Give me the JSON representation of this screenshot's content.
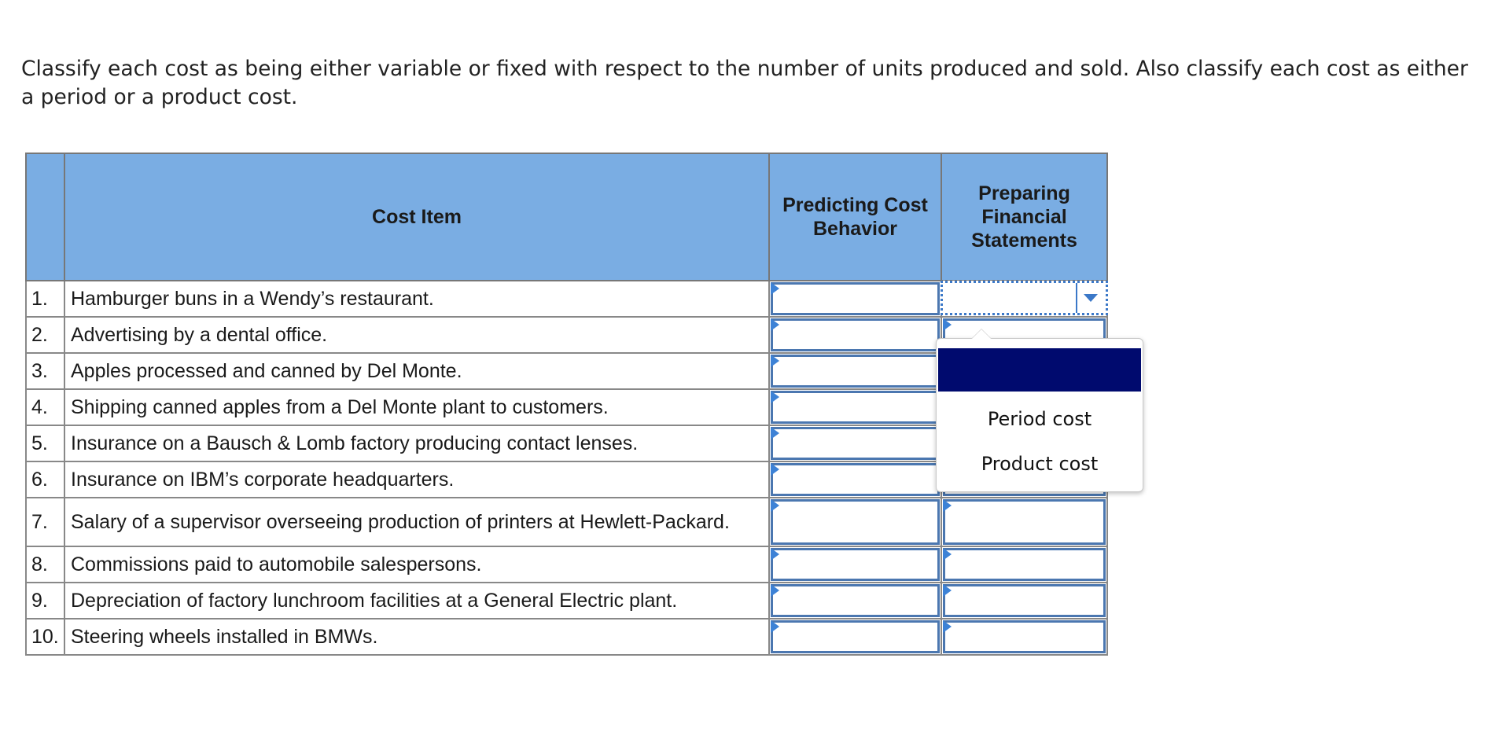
{
  "instructions": "Classify each cost as being either variable or fixed with respect to the number of units produced and sold. Also classify each cost as either a period or a product cost.",
  "table": {
    "headers": {
      "number": "",
      "cost_item": "Cost Item",
      "predicting": "Predicting Cost Behavior",
      "preparing": "Preparing Financial Statements"
    },
    "rows": [
      {
        "num": "1.",
        "item": "Hamburger buns in a Wendy’s restaurant.",
        "behavior": "",
        "statement": ""
      },
      {
        "num": "2.",
        "item": "Advertising by a dental office.",
        "behavior": "",
        "statement": ""
      },
      {
        "num": "3.",
        "item": "Apples processed and canned by Del Monte.",
        "behavior": "",
        "statement": ""
      },
      {
        "num": "4.",
        "item": "Shipping canned apples from a Del Monte plant to customers.",
        "behavior": "",
        "statement": ""
      },
      {
        "num": "5.",
        "item": "Insurance on a Bausch & Lomb factory producing contact lenses.",
        "behavior": "",
        "statement": ""
      },
      {
        "num": "6.",
        "item": "Insurance on IBM’s corporate headquarters.",
        "behavior": "",
        "statement": ""
      },
      {
        "num": "7.",
        "item": "Salary of a supervisor overseeing production of printers at Hewlett-Packard.",
        "behavior": "",
        "statement": ""
      },
      {
        "num": "8.",
        "item": "Commissions paid to automobile salespersons.",
        "behavior": "",
        "statement": ""
      },
      {
        "num": "9.",
        "item": "Depreciation of factory lunchroom facilities at a General Electric plant.",
        "behavior": "",
        "statement": ""
      },
      {
        "num": "10.",
        "item": "Steering wheels installed in BMWs.",
        "behavior": "",
        "statement": ""
      }
    ]
  },
  "dropdown": {
    "options": [
      "",
      "Period cost",
      "Product cost"
    ],
    "highlighted_index": 0
  },
  "colors": {
    "header_bg": "#7aade3",
    "field_border": "#4b77b0",
    "marker": "#3d82d6",
    "highlight": "#000a6e"
  },
  "icons": {
    "dropdown_caret": "chevron-down-icon",
    "row_marker": "triangle-right-icon"
  }
}
